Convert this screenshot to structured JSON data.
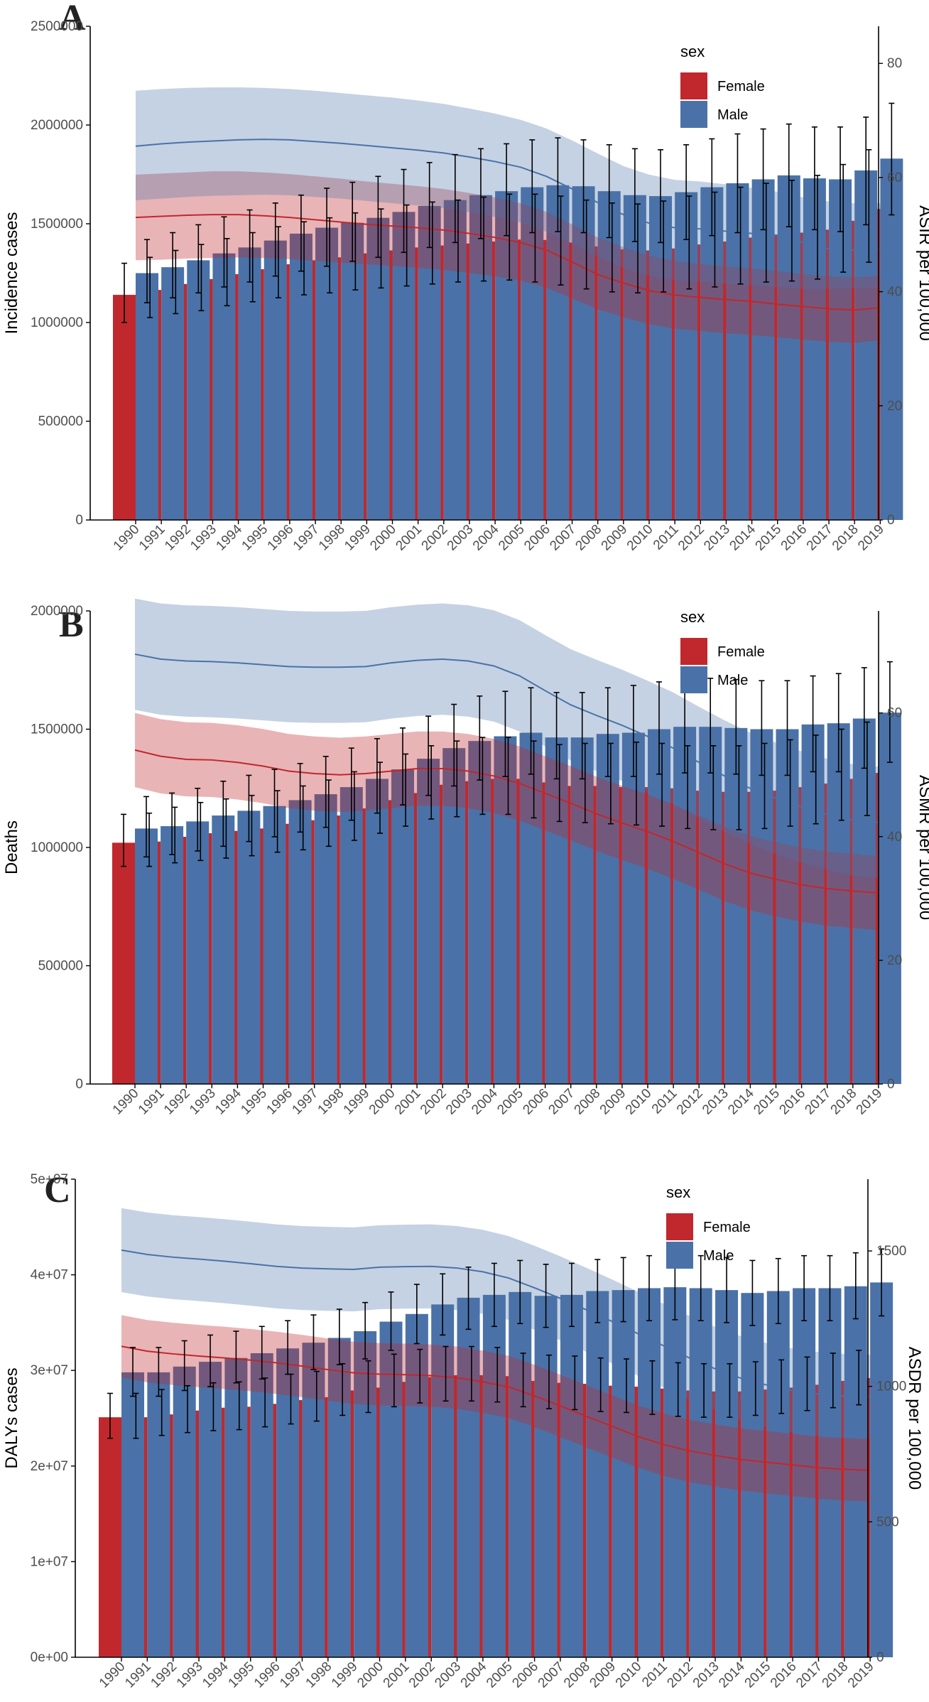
{
  "chart_data": [
    {
      "panel": "A",
      "type": "bar",
      "categories": [
        "1990",
        "1991",
        "1992",
        "1993",
        "1994",
        "1995",
        "1996",
        "1997",
        "1998",
        "1999",
        "2000",
        "2001",
        "2002",
        "2003",
        "2004",
        "2005",
        "2006",
        "2007",
        "2008",
        "2009",
        "2010",
        "2011",
        "2012",
        "2013",
        "2014",
        "2015",
        "2016",
        "2017",
        "2018",
        "2019"
      ],
      "ylabel": "Incidence cases",
      "ylim": [
        0,
        2500000
      ],
      "yticks": [
        0,
        500000,
        1000000,
        1500000,
        2000000,
        2500000
      ],
      "ytick_labels": [
        "0",
        "500000",
        "1000000",
        "1500000",
        "2000000",
        "2500000"
      ],
      "y2label": "ASIR per 100,000",
      "y2lim": [
        0,
        86.5
      ],
      "y2ticks": [
        0,
        20,
        40,
        60,
        80
      ],
      "y2tick_labels": [
        "0",
        "20",
        "40",
        "60",
        "80"
      ],
      "legend_title": "sex",
      "legend_position": "top-right",
      "series": [
        {
          "name": "Female",
          "color": "#c0282d",
          "values": [
            1140000,
            1165000,
            1195000,
            1220000,
            1245000,
            1270000,
            1295000,
            1315000,
            1330000,
            1350000,
            1365000,
            1380000,
            1390000,
            1400000,
            1410000,
            1420000,
            1418000,
            1405000,
            1385000,
            1370000,
            1365000,
            1375000,
            1395000,
            1410000,
            1430000,
            1445000,
            1455000,
            1470000,
            1515000,
            1575000
          ],
          "err_low": [
            1000000,
            1025000,
            1045000,
            1060000,
            1085000,
            1105000,
            1125000,
            1140000,
            1150000,
            1165000,
            1175000,
            1185000,
            1195000,
            1205000,
            1210000,
            1215000,
            1205000,
            1190000,
            1170000,
            1155000,
            1150000,
            1155000,
            1170000,
            1180000,
            1195000,
            1205000,
            1210000,
            1220000,
            1255000,
            1305000
          ],
          "err_high": [
            1300000,
            1330000,
            1365000,
            1395000,
            1425000,
            1455000,
            1485000,
            1510000,
            1530000,
            1555000,
            1575000,
            1595000,
            1610000,
            1620000,
            1635000,
            1650000,
            1650000,
            1640000,
            1620000,
            1605000,
            1600000,
            1615000,
            1640000,
            1660000,
            1685000,
            1705000,
            1720000,
            1745000,
            1800000,
            1875000
          ],
          "rate": [
            53.0,
            53.2,
            53.4,
            53.5,
            53.5,
            53.3,
            53.0,
            52.6,
            52.2,
            51.8,
            51.5,
            51.2,
            50.8,
            50.2,
            49.5,
            48.6,
            47.3,
            45.2,
            43.0,
            41.5,
            40.2,
            39.4,
            39.0,
            38.6,
            38.3,
            37.8,
            37.4,
            37.0,
            36.8,
            37.2
          ],
          "rate_low": [
            45.5,
            45.6,
            45.8,
            45.9,
            46.0,
            45.9,
            45.7,
            45.4,
            45.1,
            44.8,
            44.5,
            44.2,
            43.8,
            43.3,
            42.7,
            41.9,
            40.7,
            38.8,
            36.9,
            35.5,
            34.3,
            33.5,
            33.1,
            32.7,
            32.4,
            32.0,
            31.6,
            31.2,
            31.0,
            31.5
          ],
          "rate_high": [
            60.5,
            60.7,
            60.9,
            61.1,
            61.1,
            60.9,
            60.6,
            60.2,
            59.8,
            59.3,
            58.9,
            58.5,
            58.0,
            57.3,
            56.5,
            55.5,
            54.0,
            51.8,
            49.5,
            47.8,
            46.3,
            45.4,
            44.9,
            44.4,
            44.1,
            43.6,
            43.1,
            42.7,
            42.5,
            42.8
          ]
        },
        {
          "name": "Male",
          "color": "#4a72a8",
          "values": [
            1250000,
            1280000,
            1315000,
            1350000,
            1380000,
            1415000,
            1450000,
            1480000,
            1505000,
            1530000,
            1560000,
            1590000,
            1620000,
            1645000,
            1665000,
            1685000,
            1695000,
            1690000,
            1665000,
            1645000,
            1640000,
            1660000,
            1685000,
            1705000,
            1725000,
            1745000,
            1730000,
            1725000,
            1770000,
            1830000
          ],
          "err_low": [
            1100000,
            1125000,
            1150000,
            1180000,
            1205000,
            1235000,
            1260000,
            1285000,
            1310000,
            1330000,
            1355000,
            1380000,
            1405000,
            1425000,
            1440000,
            1455000,
            1460000,
            1455000,
            1430000,
            1410000,
            1405000,
            1420000,
            1440000,
            1455000,
            1470000,
            1485000,
            1470000,
            1460000,
            1495000,
            1545000
          ],
          "err_high": [
            1420000,
            1455000,
            1495000,
            1535000,
            1570000,
            1605000,
            1645000,
            1680000,
            1710000,
            1740000,
            1775000,
            1810000,
            1850000,
            1880000,
            1905000,
            1925000,
            1935000,
            1925000,
            1900000,
            1880000,
            1875000,
            1900000,
            1930000,
            1955000,
            1980000,
            2005000,
            1990000,
            1990000,
            2040000,
            2110000
          ],
          "rate": [
            65.5,
            65.9,
            66.2,
            66.4,
            66.6,
            66.7,
            66.6,
            66.3,
            66.0,
            65.6,
            65.2,
            64.8,
            64.3,
            63.6,
            62.8,
            61.8,
            60.2,
            58.0,
            55.6,
            53.5,
            52.0,
            51.2,
            51.0,
            50.6,
            50.2,
            49.9,
            48.6,
            47.5,
            47.3,
            47.4
          ],
          "rate_low": [
            56.0,
            56.3,
            56.6,
            56.8,
            56.9,
            57.0,
            56.9,
            56.6,
            56.3,
            55.9,
            55.5,
            55.1,
            54.6,
            53.9,
            53.1,
            52.1,
            50.5,
            48.4,
            46.1,
            44.2,
            42.8,
            42.0,
            41.8,
            41.4,
            41.1,
            40.8,
            40.5,
            40.5,
            40.6,
            40.8
          ],
          "rate_high": [
            75.2,
            75.5,
            75.7,
            75.8,
            75.8,
            75.7,
            75.5,
            75.2,
            74.8,
            74.4,
            74.0,
            73.5,
            72.9,
            72.1,
            71.2,
            70.1,
            68.6,
            66.5,
            64.2,
            62.0,
            60.5,
            59.6,
            59.3,
            58.8,
            58.2,
            57.5,
            56.5,
            55.8,
            55.5,
            55.5
          ]
        }
      ]
    },
    {
      "panel": "B",
      "type": "bar",
      "categories": [
        "1990",
        "1991",
        "1992",
        "1993",
        "1994",
        "1995",
        "1996",
        "1997",
        "1998",
        "1999",
        "2000",
        "2001",
        "2002",
        "2003",
        "2004",
        "2005",
        "2006",
        "2007",
        "2008",
        "2009",
        "2010",
        "2011",
        "2012",
        "2013",
        "2014",
        "2015",
        "2016",
        "2017",
        "2018",
        "2019"
      ],
      "ylabel": "Deaths",
      "ylim": [
        0,
        2000000
      ],
      "yticks": [
        0,
        500000,
        1000000,
        1500000,
        2000000
      ],
      "ytick_labels": [
        "0",
        "500000",
        "1000000",
        "1500000",
        "2000000"
      ],
      "y2label": "ASMR per 100,000",
      "y2lim": [
        0,
        76.5
      ],
      "y2ticks": [
        0,
        20,
        40,
        60
      ],
      "y2tick_labels": [
        "0",
        "20",
        "40",
        "60"
      ],
      "legend_title": "sex",
      "legend_position": "top-right",
      "series": [
        {
          "name": "Female",
          "color": "#c0282d",
          "values": [
            1020000,
            1025000,
            1045000,
            1060000,
            1070000,
            1080000,
            1100000,
            1115000,
            1135000,
            1165000,
            1200000,
            1230000,
            1265000,
            1280000,
            1290000,
            1290000,
            1275000,
            1260000,
            1260000,
            1255000,
            1255000,
            1250000,
            1240000,
            1235000,
            1235000,
            1240000,
            1255000,
            1270000,
            1290000,
            1315000
          ],
          "err_low": [
            920000,
            920000,
            935000,
            945000,
            955000,
            965000,
            980000,
            990000,
            1005000,
            1030000,
            1060000,
            1090000,
            1120000,
            1130000,
            1140000,
            1140000,
            1125000,
            1110000,
            1105000,
            1100000,
            1095000,
            1090000,
            1080000,
            1075000,
            1075000,
            1080000,
            1090000,
            1100000,
            1115000,
            1135000
          ],
          "err_high": [
            1140000,
            1145000,
            1170000,
            1190000,
            1205000,
            1220000,
            1240000,
            1260000,
            1285000,
            1320000,
            1360000,
            1395000,
            1430000,
            1450000,
            1465000,
            1465000,
            1450000,
            1435000,
            1440000,
            1440000,
            1445000,
            1440000,
            1430000,
            1430000,
            1430000,
            1440000,
            1455000,
            1475000,
            1500000,
            1530000
          ]
        },
        {
          "name": "Male",
          "color": "#4a72a8",
          "values": [
            1080000,
            1090000,
            1110000,
            1135000,
            1155000,
            1175000,
            1200000,
            1225000,
            1255000,
            1290000,
            1330000,
            1375000,
            1420000,
            1450000,
            1470000,
            1485000,
            1465000,
            1465000,
            1480000,
            1485000,
            1500000,
            1510000,
            1510000,
            1505000,
            1500000,
            1500000,
            1520000,
            1525000,
            1545000,
            1570000
          ],
          "err_low": [
            960000,
            970000,
            985000,
            1005000,
            1025000,
            1045000,
            1065000,
            1085000,
            1115000,
            1145000,
            1180000,
            1220000,
            1260000,
            1285000,
            1300000,
            1310000,
            1290000,
            1290000,
            1300000,
            1300000,
            1310000,
            1315000,
            1315000,
            1310000,
            1305000,
            1305000,
            1320000,
            1320000,
            1335000,
            1360000
          ],
          "err_high": [
            1215000,
            1230000,
            1250000,
            1280000,
            1305000,
            1330000,
            1355000,
            1385000,
            1420000,
            1460000,
            1505000,
            1555000,
            1605000,
            1640000,
            1660000,
            1675000,
            1655000,
            1655000,
            1675000,
            1685000,
            1700000,
            1715000,
            1715000,
            1710000,
            1705000,
            1705000,
            1725000,
            1735000,
            1760000,
            1785000
          ]
        }
      ]
    },
    {
      "panel": "C",
      "type": "bar",
      "categories": [
        "1990",
        "1991",
        "1992",
        "1993",
        "1994",
        "1995",
        "1996",
        "1997",
        "1998",
        "1999",
        "2000",
        "2001",
        "2002",
        "2003",
        "2004",
        "2005",
        "2006",
        "2007",
        "2008",
        "2009",
        "2010",
        "2011",
        "2012",
        "2013",
        "2014",
        "2015",
        "2016",
        "2017",
        "2018",
        "2019"
      ],
      "ylabel": "DALYs cases",
      "ylim": [
        0,
        50000000
      ],
      "yticks": [
        0,
        10000000,
        20000000,
        30000000,
        40000000,
        50000000
      ],
      "ytick_labels": [
        "0e+00",
        "1e+07",
        "2e+07",
        "3e+07",
        "4e+07",
        "5e+07"
      ],
      "y2label": "ASDR per 100,000",
      "y2lim": [
        0,
        1765
      ],
      "y2ticks": [
        0,
        500,
        1000,
        1500
      ],
      "y2tick_labels": [
        "0",
        "500",
        "1000",
        "1500"
      ],
      "legend_title": "sex",
      "legend_position": "top-right",
      "series": [
        {
          "name": "Female",
          "color": "#c0282d",
          "values": [
            25100000,
            25100000,
            25400000,
            25800000,
            26100000,
            26200000,
            26500000,
            26900000,
            27200000,
            27900000,
            28200000,
            28800000,
            29300000,
            29500000,
            29500000,
            29400000,
            28900000,
            28700000,
            28600000,
            28400000,
            28300000,
            28100000,
            27900000,
            27800000,
            27800000,
            28000000,
            28200000,
            28500000,
            28900000,
            29200000
          ],
          "err_low": [
            22900000,
            22900000,
            23200000,
            23500000,
            23700000,
            23800000,
            24100000,
            24400000,
            24700000,
            25300000,
            25600000,
            26200000,
            26600000,
            26800000,
            26800000,
            26700000,
            26200000,
            26000000,
            25900000,
            25700000,
            25600000,
            25400000,
            25200000,
            25100000,
            25100000,
            25300000,
            25500000,
            25800000,
            26100000,
            26400000
          ],
          "err_high": [
            27600000,
            27600000,
            28000000,
            28400000,
            28700000,
            28800000,
            29200000,
            29600000,
            29900000,
            30700000,
            31000000,
            31700000,
            32200000,
            32500000,
            32500000,
            32400000,
            31800000,
            31600000,
            31500000,
            31300000,
            31200000,
            31000000,
            30800000,
            30700000,
            30700000,
            30900000,
            31100000,
            31400000,
            31800000,
            32100000
          ]
        },
        {
          "name": "Male",
          "color": "#4a72a8",
          "values": [
            29800000,
            29800000,
            30400000,
            30900000,
            31300000,
            31800000,
            32300000,
            32900000,
            33400000,
            34100000,
            35100000,
            35900000,
            36900000,
            37600000,
            37900000,
            38200000,
            37800000,
            37900000,
            38300000,
            38400000,
            38600000,
            38700000,
            38600000,
            38400000,
            38100000,
            38300000,
            38600000,
            38600000,
            38800000,
            39200000
          ],
          "err_low": [
            27300000,
            27300000,
            27900000,
            28300000,
            28700000,
            29100000,
            29600000,
            30100000,
            30600000,
            31200000,
            32100000,
            32800000,
            33700000,
            34300000,
            34600000,
            34900000,
            34500000,
            34600000,
            35000000,
            35100000,
            35200000,
            35300000,
            35200000,
            35000000,
            34700000,
            34900000,
            35200000,
            35200000,
            35400000,
            35700000
          ],
          "err_high": [
            32400000,
            32400000,
            33100000,
            33700000,
            34100000,
            34600000,
            35200000,
            35800000,
            36400000,
            37100000,
            38200000,
            39000000,
            40100000,
            40800000,
            41200000,
            41500000,
            41100000,
            41200000,
            41600000,
            41800000,
            42000000,
            42100000,
            42000000,
            41800000,
            41500000,
            41700000,
            42000000,
            42000000,
            42300000,
            42700000
          ]
        }
      ]
    }
  ]
}
